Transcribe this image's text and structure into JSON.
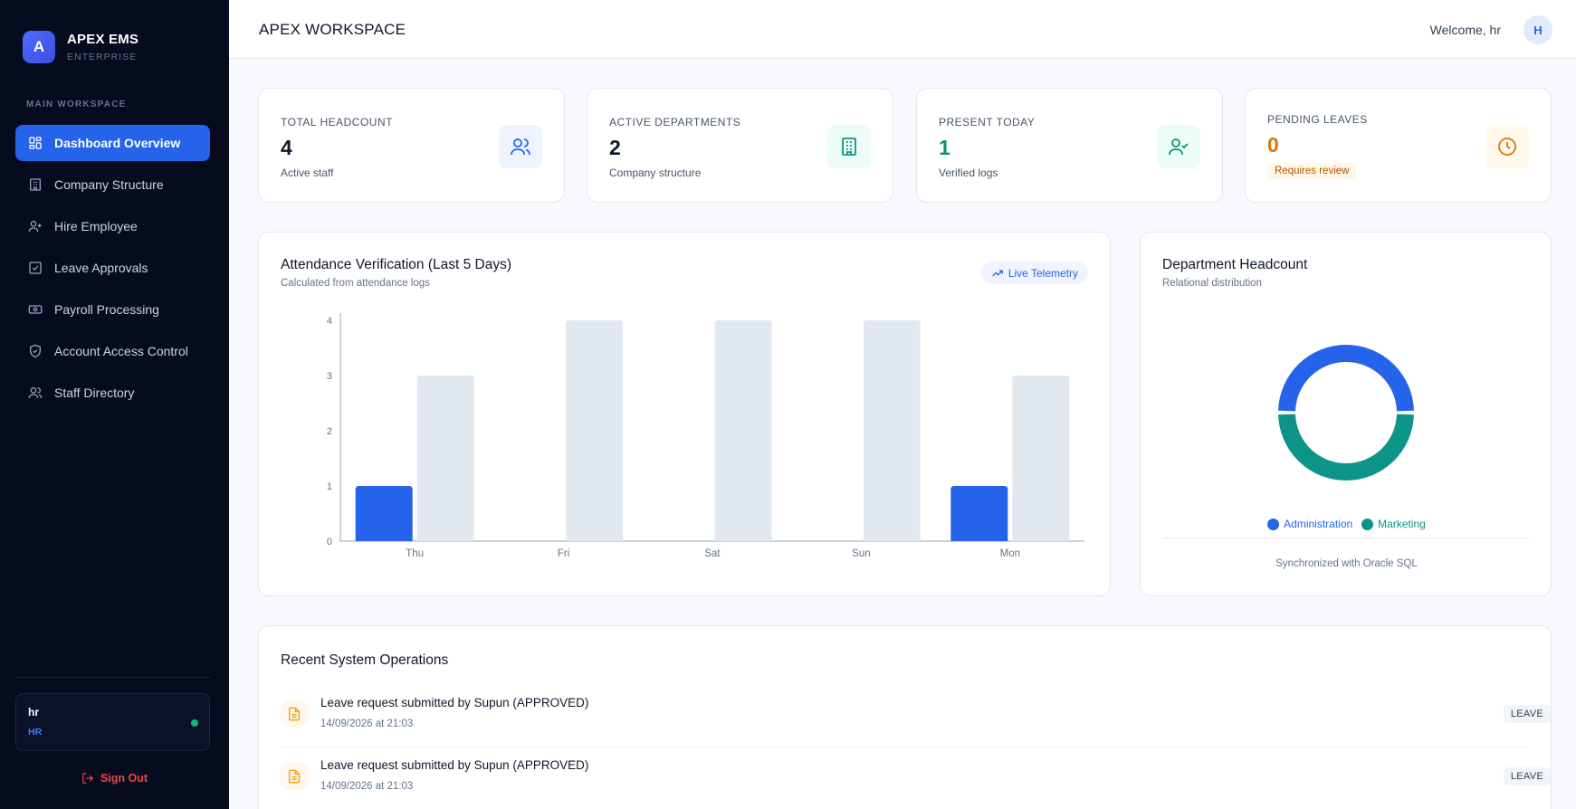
{
  "brand": {
    "logo_letter": "A",
    "name": "APEX EMS",
    "subtitle": "ENTERPRISE"
  },
  "sidebar": {
    "section_label": "MAIN WORKSPACE",
    "items": [
      {
        "label": "Dashboard Overview",
        "icon": "dashboard-grid-icon",
        "active": true
      },
      {
        "label": "Company Structure",
        "icon": "building-icon",
        "active": false
      },
      {
        "label": "Hire Employee",
        "icon": "user-plus-icon",
        "active": false
      },
      {
        "label": "Leave Approvals",
        "icon": "checkbox-icon",
        "active": false
      },
      {
        "label": "Payroll Processing",
        "icon": "banknote-icon",
        "active": false
      },
      {
        "label": "Account Access Control",
        "icon": "shield-check-icon",
        "active": false
      },
      {
        "label": "Staff Directory",
        "icon": "users-icon",
        "active": false
      }
    ],
    "user": {
      "name": "hr",
      "role": "HR",
      "status_color": "#10b981"
    },
    "sign_out_label": "Sign Out"
  },
  "header": {
    "title": "APEX WORKSPACE",
    "welcome": "Welcome, hr",
    "avatar_letter": "H"
  },
  "stats": [
    {
      "label": "TOTAL HEADCOUNT",
      "value": "4",
      "sub": "Active staff",
      "icon": "users-icon",
      "value_color": "#0f172a",
      "icon_color": "#2563eb",
      "icon_bg": "#eef4ff"
    },
    {
      "label": "ACTIVE DEPARTMENTS",
      "value": "2",
      "sub": "Company structure",
      "icon": "building-icon",
      "value_color": "#0f172a",
      "icon_color": "#0d9488",
      "icon_bg": "#ecfdf7"
    },
    {
      "label": "PRESENT TODAY",
      "value": "1",
      "sub": "Verified logs",
      "icon": "user-check-icon",
      "value_color": "#059669",
      "icon_color": "#059669",
      "icon_bg": "#ecfdf5"
    },
    {
      "label": "PENDING LEAVES",
      "value": "0",
      "sub": "Requires review",
      "icon": "clock-icon",
      "value_color": "#d97706",
      "icon_color": "#d97706",
      "icon_bg": "#fff8eb"
    }
  ],
  "attendance": {
    "title": "Attendance Verification (Last 5 Days)",
    "subtitle": "Calculated from attendance logs",
    "pill_label": "Live Telemetry"
  },
  "department": {
    "title": "Department Headcount",
    "subtitle": "Relational distribution",
    "footer": "Synchronized with Oracle SQL"
  },
  "operations": {
    "title": "Recent System Operations",
    "rows": [
      {
        "title": "Leave request submitted by Supun (APPROVED)",
        "time": "14/09/2026 at 21:03",
        "tag": "LEAVE",
        "icon": "file-text-icon"
      },
      {
        "title": "Leave request submitted by Supun (APPROVED)",
        "time": "14/09/2026 at 21:03",
        "tag": "LEAVE",
        "icon": "file-text-icon"
      }
    ]
  },
  "chart_data": [
    {
      "type": "bar",
      "categories": [
        "Thu",
        "Fri",
        "Sat",
        "Sun",
        "Mon"
      ],
      "series": [
        {
          "values": [
            1,
            0,
            0,
            0,
            1
          ],
          "color": "#2563eb"
        },
        {
          "values": [
            3,
            4,
            4,
            4,
            3
          ],
          "color": "#e2e8f0"
        }
      ],
      "ylim": [
        0,
        4
      ],
      "yticks": [
        0,
        1,
        2,
        3,
        4
      ],
      "grid": false,
      "legend": "none"
    },
    {
      "type": "pie",
      "labels": [
        "Administration",
        "Marketing"
      ],
      "values": [
        1,
        1
      ],
      "colors": [
        "#2563eb",
        "#0d9488"
      ],
      "donut": true,
      "legend": "bottom"
    }
  ]
}
